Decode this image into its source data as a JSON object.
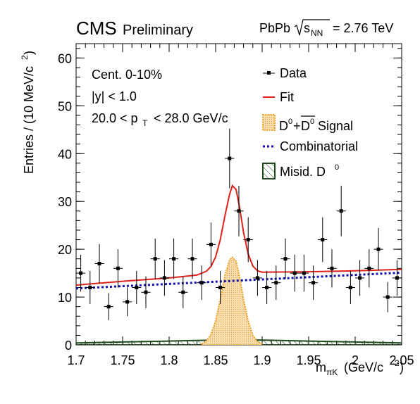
{
  "header": {
    "experiment": "CMS",
    "status": "Preliminary",
    "system": "PbPb",
    "energy": "= 2.76 TeV"
  },
  "chart_data": {
    "type": "scatter",
    "title": "",
    "xlabel": "m",
    "xlabel_sub": "πK",
    "xlabel_unit": "(GeV/c",
    "ylabel": "Entries / (10 MeV/c",
    "xlim": [
      1.7,
      2.05
    ],
    "ylim": [
      0,
      63
    ],
    "xticks": [
      "1.7",
      "1.75",
      "1.8",
      "1.85",
      "1.9",
      "1.95",
      "2",
      "2.05"
    ],
    "yticks": [
      "0",
      "10",
      "20",
      "30",
      "40",
      "50",
      "60"
    ],
    "xtick_values": [
      1.7,
      1.75,
      1.8,
      1.85,
      1.9,
      1.95,
      2.0,
      2.05
    ],
    "ytick_values": [
      0,
      10,
      20,
      30,
      40,
      50,
      60
    ],
    "annotations": {
      "centrality": "Cent. 0-10%",
      "rapidity": "|y| < 1.0",
      "pt_left": "20.0 < p",
      "pt_sub": "T",
      "pt_right": "< 28.0 GeV/c"
    },
    "legend": {
      "position": "top-right",
      "data": "Data",
      "fit": "Fit",
      "signal": "Signal",
      "combinatorial": "Combinatorial",
      "misid": "Misid. D"
    },
    "colors": {
      "data": "#000000",
      "fit": "#e0201b",
      "signal_fill": "#f7deb0",
      "signal_line": "#f0a020",
      "combinatorial": "#1010b0",
      "misid_line": "#1e4a1e"
    },
    "series": [
      {
        "name": "Data",
        "x": [
          1.705,
          1.715,
          1.725,
          1.735,
          1.745,
          1.755,
          1.765,
          1.775,
          1.785,
          1.795,
          1.805,
          1.815,
          1.825,
          1.835,
          1.845,
          1.855,
          1.865,
          1.875,
          1.885,
          1.895,
          1.905,
          1.915,
          1.925,
          1.935,
          1.945,
          1.955,
          1.965,
          1.975,
          1.985,
          1.995,
          2.005,
          2.015,
          2.025,
          2.035,
          2.045
        ],
        "y": [
          15,
          12,
          17,
          8,
          16,
          9,
          12,
          11,
          18,
          14,
          18,
          11,
          18,
          13,
          21,
          12,
          39,
          28,
          22,
          14,
          12,
          13,
          18,
          15,
          15,
          13,
          22,
          16,
          28,
          12,
          14,
          16,
          20,
          10,
          14
        ]
      },
      {
        "name": "Fit",
        "x": [
          1.7,
          1.75,
          1.8,
          1.83,
          1.84,
          1.845,
          1.85,
          1.855,
          1.86,
          1.865,
          1.868,
          1.872,
          1.876,
          1.88,
          1.885,
          1.89,
          1.895,
          1.9,
          1.95,
          2.0,
          2.05
        ],
        "y": [
          12.5,
          13.3,
          14.0,
          14.6,
          15.4,
          16.4,
          18.4,
          22.0,
          27.0,
          31.5,
          33.3,
          32.5,
          28.5,
          23.5,
          19.0,
          16.5,
          15.5,
          15.2,
          15.3,
          15.5,
          15.8
        ]
      },
      {
        "name": "Signal",
        "x": [
          1.835,
          1.84,
          1.845,
          1.85,
          1.855,
          1.86,
          1.865,
          1.868,
          1.872,
          1.876,
          1.88,
          1.885,
          1.89,
          1.895,
          1.9
        ],
        "y": [
          0.2,
          0.8,
          2.2,
          5.0,
          9.5,
          14.5,
          17.8,
          18.3,
          17.5,
          14.0,
          9.5,
          5.0,
          2.0,
          0.7,
          0.2
        ]
      },
      {
        "name": "Combinatorial",
        "x": [
          1.7,
          2.05
        ],
        "y": [
          11.8,
          15.1
        ]
      },
      {
        "name": "Misid",
        "x": [
          1.7,
          1.75,
          1.8,
          1.85,
          1.87,
          1.9,
          1.95,
          2.0,
          2.05
        ],
        "y": [
          0.4,
          0.6,
          0.8,
          1.0,
          1.1,
          1.0,
          0.8,
          0.6,
          0.4
        ]
      }
    ]
  }
}
